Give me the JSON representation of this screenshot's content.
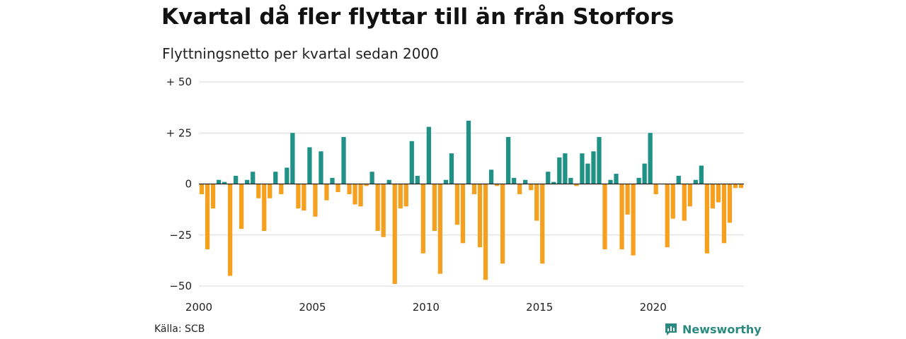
{
  "header": {
    "title": "Kvartal då fler flyttar till än från Storfors",
    "subtitle": "Flyttningsnetto per kvartal sedan 2000"
  },
  "footer": {
    "source": "Källa: SCB",
    "brand": "Newsworthy",
    "brand_icon": "bar-chart-logo-icon"
  },
  "colors": {
    "positive": "#1f9186",
    "negative": "#f5a01e",
    "grid": "#d9d9d9",
    "zero_line": "#222222"
  },
  "chart_data": {
    "type": "bar",
    "title": "Kvartal då fler flyttar till än från Storfors",
    "subtitle": "Flyttningsnetto per kvartal sedan 2000",
    "xlabel": "",
    "ylabel": "",
    "ylim": [
      -50,
      50
    ],
    "yticks": [
      {
        "value": 50,
        "label": "+ 50"
      },
      {
        "value": 25,
        "label": "+ 25"
      },
      {
        "value": 0,
        "label": "0"
      },
      {
        "value": -25,
        "label": "−25"
      },
      {
        "value": -50,
        "label": "−50"
      }
    ],
    "xticks": [
      "2000",
      "2005",
      "2010",
      "2015",
      "2020"
    ],
    "grid": true,
    "start_year": 2000,
    "values": [
      -5,
      -32,
      -12,
      2,
      1,
      -45,
      4,
      -22,
      2,
      6,
      -7,
      -23,
      -7,
      6,
      -5,
      8,
      25,
      -12,
      -13,
      18,
      -16,
      16,
      -8,
      3,
      -4,
      23,
      -5,
      -10,
      -11,
      -1,
      6,
      -23,
      -26,
      2,
      -49,
      -12,
      -11,
      21,
      4,
      -34,
      28,
      -23,
      -44,
      2,
      15,
      -20,
      -29,
      31,
      -5,
      -31,
      -47,
      7,
      -1,
      -39,
      23,
      3,
      -5,
      2,
      -3,
      -18,
      -39,
      6,
      1,
      13,
      15,
      3,
      -1,
      15,
      10,
      16,
      23,
      -32,
      2,
      5,
      -32,
      -15,
      -35,
      3,
      10,
      25,
      -5,
      0,
      -31,
      -17,
      4,
      -18,
      -11,
      2,
      9,
      -34,
      -12,
      -9,
      -29,
      -19,
      -2,
      -2
    ]
  }
}
